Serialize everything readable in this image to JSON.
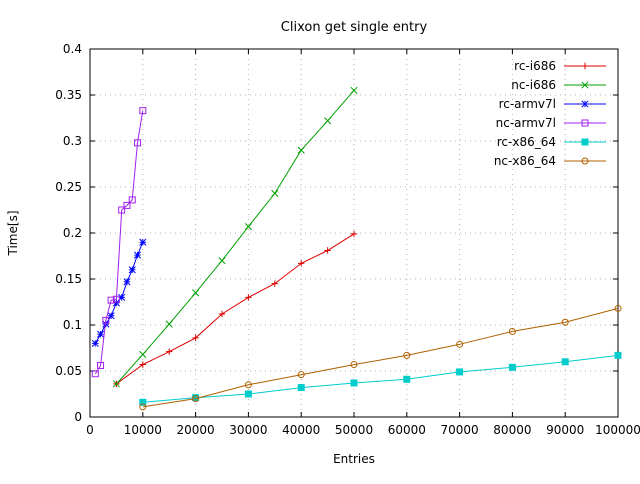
{
  "chart_data": {
    "type": "line",
    "title": "Clixon get single entry",
    "xlabel": "Entries",
    "ylabel": "Time[s]",
    "xlim": [
      0,
      100000
    ],
    "ylim": [
      0,
      0.4
    ],
    "xticks": [
      0,
      10000,
      20000,
      30000,
      40000,
      50000,
      60000,
      70000,
      80000,
      90000,
      100000
    ],
    "xtick_labels": [
      "0",
      "10000",
      "20000",
      "30000",
      "40000",
      "50000",
      "60000",
      "70000",
      "80000",
      "90000",
      "100000"
    ],
    "yticks": [
      0,
      0.05,
      0.1,
      0.15,
      0.2,
      0.25,
      0.3,
      0.35,
      0.4
    ],
    "ytick_labels": [
      "0",
      "0.05",
      "0.1",
      "0.15",
      "0.2",
      "0.25",
      "0.3",
      "0.35",
      "0.4"
    ],
    "grid": true,
    "legend_position": "top-right",
    "series": [
      {
        "name": "rc-i686",
        "color": "#dd0000",
        "marker": "plus",
        "x": [
          5000,
          10000,
          15000,
          20000,
          25000,
          30000,
          35000,
          40000,
          45000,
          50000
        ],
        "y": [
          0.036,
          0.057,
          0.071,
          0.086,
          0.112,
          0.13,
          0.145,
          0.167,
          0.181,
          0.199
        ]
      },
      {
        "name": "nc-i686",
        "color": "#00a000",
        "marker": "cross",
        "x": [
          5000,
          10000,
          15000,
          20000,
          25000,
          30000,
          35000,
          40000,
          45000,
          50000
        ],
        "y": [
          0.036,
          0.068,
          0.101,
          0.135,
          0.17,
          0.207,
          0.243,
          0.29,
          0.322,
          0.355
        ]
      },
      {
        "name": "rc-armv7l",
        "color": "#0000ff",
        "marker": "star",
        "x": [
          1000,
          2000,
          3000,
          4000,
          5000,
          6000,
          7000,
          8000,
          9000,
          10000
        ],
        "y": [
          0.08,
          0.09,
          0.101,
          0.11,
          0.124,
          0.13,
          0.147,
          0.16,
          0.176,
          0.19
        ]
      },
      {
        "name": "nc-armv7l",
        "color": "#a020f0",
        "marker": "square-open",
        "x": [
          1000,
          2000,
          3000,
          4000,
          5000,
          6000,
          7000,
          8000,
          9000,
          10000
        ],
        "y": [
          0.047,
          0.056,
          0.105,
          0.127,
          0.128,
          0.225,
          0.23,
          0.236,
          0.298,
          0.333
        ]
      },
      {
        "name": "rc-x86_64",
        "color": "#00cccc",
        "marker": "square-filled",
        "x": [
          10000,
          20000,
          30000,
          40000,
          50000,
          60000,
          70000,
          80000,
          90000,
          100000
        ],
        "y": [
          0.016,
          0.021,
          0.025,
          0.032,
          0.037,
          0.041,
          0.049,
          0.054,
          0.06,
          0.067
        ]
      },
      {
        "name": "nc-x86_64",
        "color": "#b06000",
        "marker": "circle-open",
        "x": [
          10000,
          20000,
          30000,
          40000,
          50000,
          60000,
          70000,
          80000,
          90000,
          100000
        ],
        "y": [
          0.011,
          0.02,
          0.035,
          0.046,
          0.057,
          0.067,
          0.079,
          0.093,
          0.103,
          0.118
        ]
      }
    ]
  }
}
